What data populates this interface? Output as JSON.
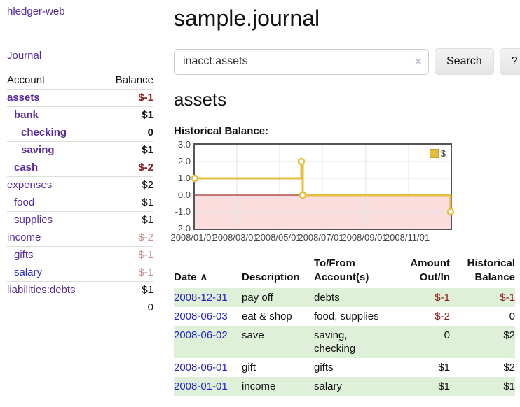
{
  "colors": {
    "link_purple": "#5a2b9d",
    "link_blue": "#2323cc",
    "negative_strong": "#8b1a1a",
    "negative_soft": "#c48a8a",
    "row_stripe_green": "#dff0d8",
    "chart_line_gold": "#e6bd3d",
    "chart_negative_fill": "#fbdddd",
    "chart_zero_line": "#8b0000",
    "chart_border": "#545454",
    "chart_grid": "#e2e2e2"
  },
  "sidebar": {
    "app_title": "hledger-web",
    "journal_link": "Journal",
    "accounts": {
      "col_account": "Account",
      "col_balance": "Balance",
      "rows": [
        {
          "name": "assets",
          "indent": 0,
          "bold": true,
          "blue": false,
          "balance": "$-1",
          "neg": "strong"
        },
        {
          "name": "bank",
          "indent": 1,
          "bold": true,
          "blue": false,
          "balance": "$1",
          "neg": "none"
        },
        {
          "name": "checking",
          "indent": 2,
          "bold": true,
          "blue": false,
          "balance": "0",
          "neg": "none"
        },
        {
          "name": "saving",
          "indent": 2,
          "bold": true,
          "blue": false,
          "balance": "$1",
          "neg": "none"
        },
        {
          "name": "cash",
          "indent": 1,
          "bold": true,
          "blue": false,
          "balance": "$-2",
          "neg": "strong"
        },
        {
          "name": "expenses",
          "indent": 0,
          "bold": false,
          "blue": false,
          "balance": "$2",
          "neg": "none"
        },
        {
          "name": "food",
          "indent": 1,
          "bold": false,
          "blue": false,
          "balance": "$1",
          "neg": "none"
        },
        {
          "name": "supplies",
          "indent": 1,
          "bold": false,
          "blue": false,
          "balance": "$1",
          "neg": "none"
        },
        {
          "name": "income",
          "indent": 0,
          "bold": false,
          "blue": false,
          "balance": "$-2",
          "neg": "soft"
        },
        {
          "name": "gifts",
          "indent": 1,
          "bold": false,
          "blue": false,
          "balance": "$-1",
          "neg": "soft"
        },
        {
          "name": "salary",
          "indent": 1,
          "bold": false,
          "blue": true,
          "balance": "$-1",
          "neg": "soft"
        },
        {
          "name": "liabilities:debts",
          "indent": 0,
          "bold": false,
          "blue": false,
          "balance": "$1",
          "neg": "none"
        }
      ],
      "total": "0"
    }
  },
  "header": {
    "title": "sample.journal"
  },
  "search": {
    "value": "inacct:assets",
    "clear_icon": "×",
    "search_button": "Search",
    "help_button": "?"
  },
  "account_view": {
    "heading": "assets",
    "section_label": "Historical Balance:"
  },
  "chart_data": {
    "type": "line",
    "style": "step",
    "title": "Historical Balance:",
    "series": [
      {
        "name": "$",
        "points": [
          {
            "date": "2008-01-01",
            "value": 1
          },
          {
            "date": "2008-06-01",
            "value": 2
          },
          {
            "date": "2008-06-03",
            "value": 0
          },
          {
            "date": "2008-12-31",
            "value": -1
          }
        ]
      }
    ],
    "x_range": [
      "2008-01-01",
      "2008-12-31"
    ],
    "ylim": [
      -2,
      3
    ],
    "y_ticks": [
      3.0,
      2.0,
      1.0,
      0.0,
      -1.0,
      -2.0
    ],
    "x_tick_labels": [
      "2008/01/01",
      "2008/03/01",
      "2008/05/01",
      "2008/07/01",
      "2008/09/01",
      "2008/11/01"
    ],
    "legend": {
      "label": "$",
      "position": "top-right"
    },
    "grid": true,
    "negative_area_shaded": true
  },
  "transactions": {
    "headers": {
      "date": "Date",
      "sort_indicator": "∧",
      "description": "Description",
      "accounts": "To/From Account(s)",
      "amount": "Amount Out/In",
      "balance": "Historical Balance"
    },
    "rows": [
      {
        "date": "2008-12-31",
        "description": "pay off",
        "accounts": "debts",
        "amount": "$-1",
        "amount_neg": true,
        "balance": "$-1",
        "balance_neg": true
      },
      {
        "date": "2008-06-03",
        "description": "eat & shop",
        "accounts": "food, supplies",
        "amount": "$-2",
        "amount_neg": true,
        "balance": "0",
        "balance_neg": false
      },
      {
        "date": "2008-06-02",
        "description": "save",
        "accounts": "saving,\nchecking",
        "amount": "0",
        "amount_neg": false,
        "balance": "$2",
        "balance_neg": false
      },
      {
        "date": "2008-06-01",
        "description": "gift",
        "accounts": "gifts",
        "amount": "$1",
        "amount_neg": false,
        "balance": "$2",
        "balance_neg": false
      },
      {
        "date": "2008-01-01",
        "description": "income",
        "accounts": "salary",
        "amount": "$1",
        "amount_neg": false,
        "balance": "$1",
        "balance_neg": false
      }
    ]
  }
}
